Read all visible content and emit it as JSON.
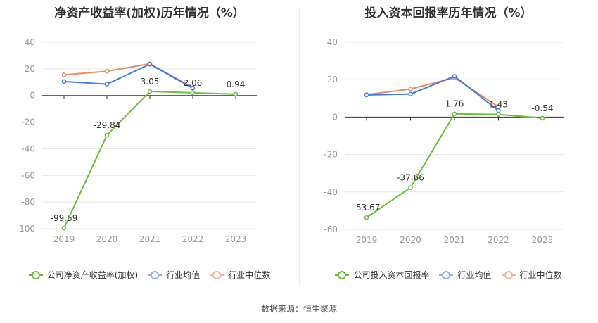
{
  "source": "数据来源：恒生聚源",
  "chart_data": [
    {
      "type": "line",
      "title": "净资产收益率(加权)历年情况（%）",
      "categories": [
        "2019",
        "2020",
        "2021",
        "2022",
        "2023"
      ],
      "ylim": [
        -100,
        40
      ],
      "yticks": [
        40,
        20,
        0,
        -20,
        -40,
        -60,
        -80,
        -100
      ],
      "grid": true,
      "legend_position": "bottom",
      "series": [
        {
          "name": "公司净资产收益率(加权)",
          "color": "#67c23a",
          "values": [
            -99.59,
            -29.84,
            3.05,
            2.06,
            0.94
          ],
          "labels": [
            "-99.59",
            "-29.84",
            "3.05",
            "2.06",
            "0.94"
          ]
        },
        {
          "name": "行业均值",
          "color": "#3f7de3",
          "values": [
            10.5,
            8.5,
            23.5,
            5.5,
            null
          ]
        },
        {
          "name": "行业中位数",
          "color": "#ef8c5c",
          "values": [
            15.5,
            18.2,
            23.8,
            6.0,
            null
          ]
        }
      ]
    },
    {
      "type": "line",
      "title": "投入资本回报率历年情况（%）",
      "categories": [
        "2019",
        "2020",
        "2021",
        "2022",
        "2023"
      ],
      "ylim": [
        -60,
        40
      ],
      "yticks": [
        40,
        20,
        0,
        -20,
        -40,
        -60
      ],
      "grid": true,
      "legend_position": "bottom",
      "series": [
        {
          "name": "公司投入资本回报率",
          "color": "#67c23a",
          "values": [
            -53.67,
            -37.66,
            1.76,
            1.43,
            -0.54
          ],
          "labels": [
            "-53.67",
            "-37.66",
            "1.76",
            "1.43",
            "-0.54"
          ]
        },
        {
          "name": "行业均值",
          "color": "#3f7de3",
          "values": [
            11.8,
            12.3,
            21.8,
            3.5,
            null
          ]
        },
        {
          "name": "行业中位数",
          "color": "#ef8c5c",
          "values": [
            12.0,
            15.0,
            21.0,
            5.5,
            null
          ]
        }
      ]
    }
  ]
}
